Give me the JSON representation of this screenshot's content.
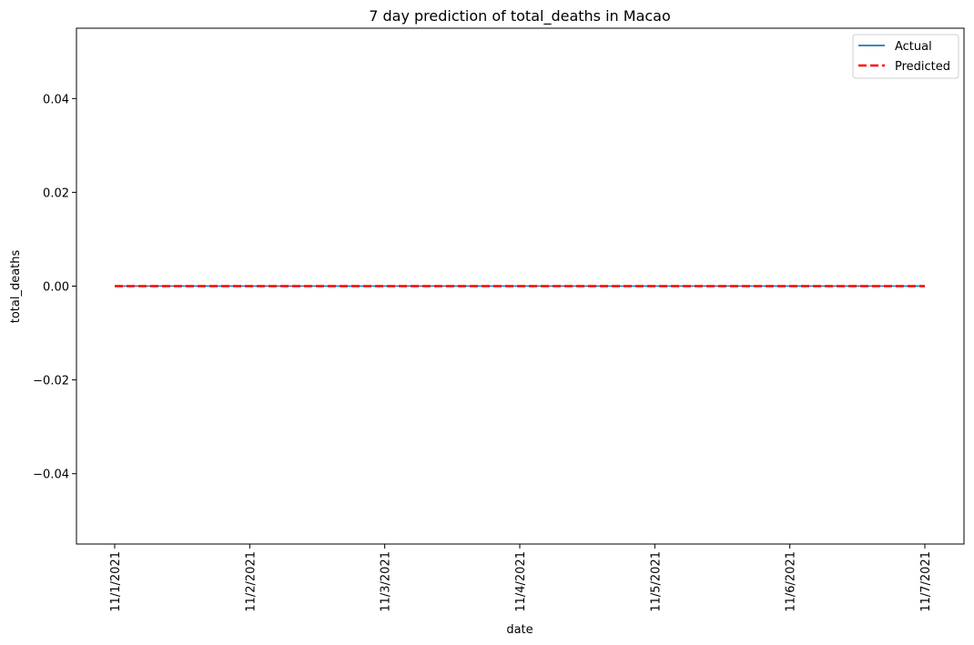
{
  "chart_data": {
    "type": "line",
    "title": "7 day prediction of total_deaths in Macao",
    "xlabel": "date",
    "ylabel": "total_deaths",
    "x": [
      "11/1/2021",
      "11/2/2021",
      "11/3/2021",
      "11/4/2021",
      "11/5/2021",
      "11/6/2021",
      "11/7/2021"
    ],
    "ylim": [
      -0.055,
      0.055
    ],
    "yticks": [
      0.04,
      0.02,
      0.0,
      -0.02,
      -0.04
    ],
    "ytick_labels": [
      "0.04",
      "0.02",
      "0.00",
      "−0.02",
      "−0.04"
    ],
    "grid": false,
    "legend_position": "top-right",
    "series": [
      {
        "name": "Actual",
        "values": [
          0,
          0,
          0,
          0,
          0,
          0,
          0
        ],
        "color": "#1f77b4",
        "style": "solid"
      },
      {
        "name": "Predicted",
        "values": [
          0,
          0,
          0,
          0,
          0,
          0,
          0
        ],
        "color": "#ff0000",
        "style": "dashed"
      }
    ]
  }
}
